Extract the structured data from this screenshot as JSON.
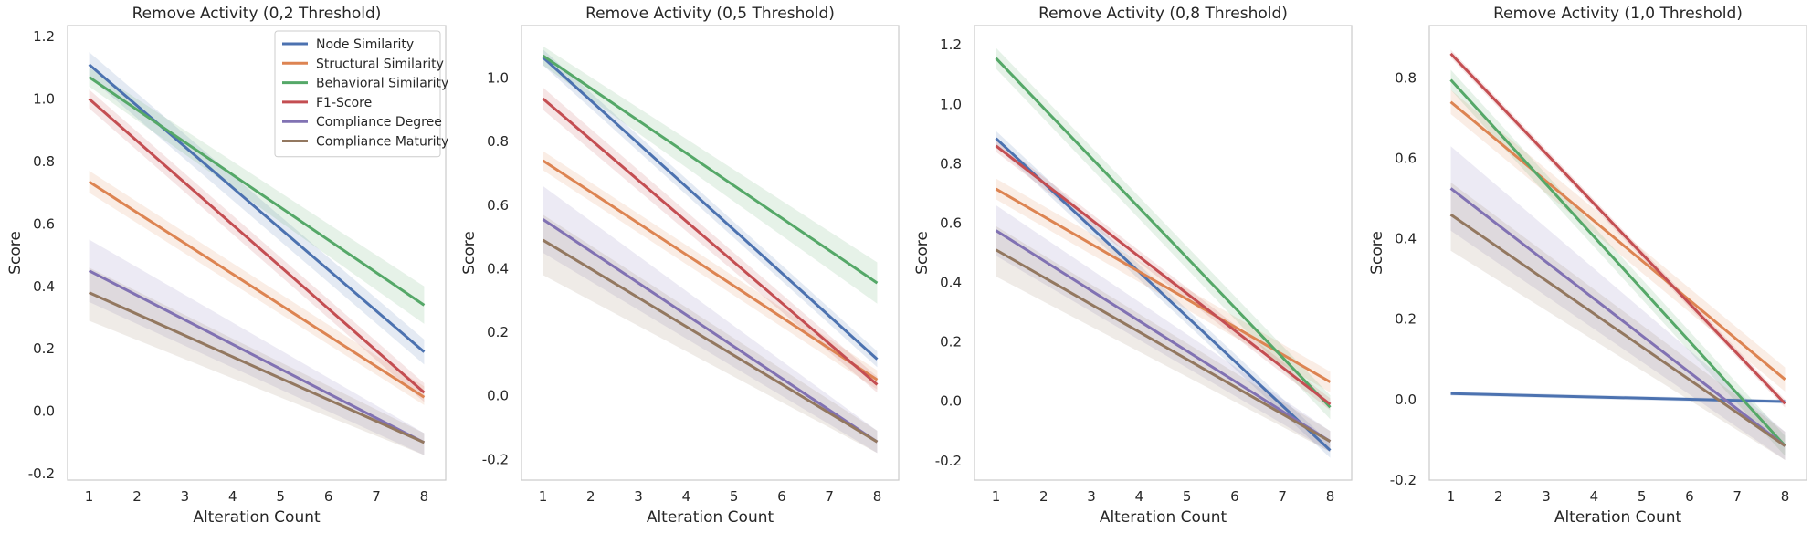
{
  "chart_data": [
    {
      "type": "line",
      "title": "Remove Activity (0,2 Threshold)",
      "xlabel": "Alteration Count",
      "ylabel": "Score",
      "xlim": [
        0.55,
        8.45
      ],
      "ylim": [
        -0.22,
        1.235
      ],
      "xticks": [
        1,
        2,
        3,
        4,
        5,
        6,
        7,
        8
      ],
      "yticks": [
        -0.2,
        0.0,
        0.2,
        0.4,
        0.6,
        0.8,
        1.0,
        1.2
      ],
      "ytick_labels": [
        "-0.2",
        "0.0",
        "0.2",
        "0.4",
        "0.6",
        "0.8",
        "1.0",
        "1.2"
      ],
      "grid": false,
      "legend": "top-right",
      "series": [
        {
          "name": "Node Similarity",
          "color": "#4C72B0",
          "x": [
            1,
            8
          ],
          "y": [
            1.11,
            0.19
          ],
          "ci": [
            [
              1.15,
              1.07
            ],
            [
              0.23,
              0.15
            ]
          ]
        },
        {
          "name": "Structural Similarity",
          "color": "#DD8452",
          "x": [
            1,
            8
          ],
          "y": [
            0.735,
            0.045
          ],
          "ci": [
            [
              0.77,
              0.7
            ],
            [
              0.08,
              0.02
            ]
          ]
        },
        {
          "name": "Behavioral Similarity",
          "color": "#55A868",
          "x": [
            1,
            8
          ],
          "y": [
            1.07,
            0.34
          ],
          "ci": [
            [
              1.1,
              1.04
            ],
            [
              0.4,
              0.28
            ]
          ]
        },
        {
          "name": "F1-Score",
          "color": "#C44E52",
          "x": [
            1,
            8
          ],
          "y": [
            1.0,
            0.06
          ],
          "ci": [
            [
              1.03,
              0.97
            ],
            [
              0.09,
              0.03
            ]
          ]
        },
        {
          "name": "Compliance Degree",
          "color": "#8172B3",
          "x": [
            1,
            8
          ],
          "y": [
            0.45,
            -0.1
          ],
          "ci": [
            [
              0.55,
              0.35
            ],
            [
              -0.07,
              -0.14
            ]
          ]
        },
        {
          "name": "Compliance Maturity",
          "color": "#937860",
          "x": [
            1,
            8
          ],
          "y": [
            0.38,
            -0.1
          ],
          "ci": [
            [
              0.46,
              0.29
            ],
            [
              -0.07,
              -0.14
            ]
          ]
        }
      ]
    },
    {
      "type": "line",
      "title": "Remove Activity (0,5 Threshold)",
      "xlabel": "Alteration Count",
      "ylabel": "Score",
      "xlim": [
        0.55,
        8.45
      ],
      "ylim": [
        -0.265,
        1.165
      ],
      "xticks": [
        1,
        2,
        3,
        4,
        5,
        6,
        7,
        8
      ],
      "yticks": [
        -0.2,
        0.0,
        0.2,
        0.4,
        0.6,
        0.8,
        1.0
      ],
      "ytick_labels": [
        "-0.2",
        "0.0",
        "0.2",
        "0.4",
        "0.6",
        "0.8",
        "1.0"
      ],
      "grid": false,
      "legend": "none",
      "series": [
        {
          "name": "Node Similarity",
          "color": "#4C72B0",
          "x": [
            1,
            8
          ],
          "y": [
            1.065,
            0.115
          ],
          "ci": [
            [
              1.09,
              1.04
            ],
            [
              0.14,
              0.09
            ]
          ]
        },
        {
          "name": "Structural Similarity",
          "color": "#DD8452",
          "x": [
            1,
            8
          ],
          "y": [
            0.74,
            0.05
          ],
          "ci": [
            [
              0.77,
              0.71
            ],
            [
              0.08,
              0.02
            ]
          ]
        },
        {
          "name": "Behavioral Similarity",
          "color": "#55A868",
          "x": [
            1,
            8
          ],
          "y": [
            1.07,
            0.355
          ],
          "ci": [
            [
              1.1,
              1.04
            ],
            [
              0.42,
              0.29
            ]
          ]
        },
        {
          "name": "F1-Score",
          "color": "#C44E52",
          "x": [
            1,
            8
          ],
          "y": [
            0.935,
            0.035
          ],
          "ci": [
            [
              0.97,
              0.9
            ],
            [
              0.06,
              0.01
            ]
          ]
        },
        {
          "name": "Compliance Degree",
          "color": "#8172B3",
          "x": [
            1,
            8
          ],
          "y": [
            0.555,
            -0.145
          ],
          "ci": [
            [
              0.66,
              0.45
            ],
            [
              -0.11,
              -0.18
            ]
          ]
        },
        {
          "name": "Compliance Maturity",
          "color": "#937860",
          "x": [
            1,
            8
          ],
          "y": [
            0.49,
            -0.145
          ],
          "ci": [
            [
              0.57,
              0.38
            ],
            [
              -0.11,
              -0.18
            ]
          ]
        }
      ]
    },
    {
      "type": "line",
      "title": "Remove Activity (0,8 Threshold)",
      "xlabel": "Alteration Count",
      "ylabel": "Score",
      "xlim": [
        0.55,
        8.45
      ],
      "ylim": [
        -0.265,
        1.265
      ],
      "xticks": [
        1,
        2,
        3,
        4,
        5,
        6,
        7,
        8
      ],
      "yticks": [
        -0.2,
        0.0,
        0.2,
        0.4,
        0.6,
        0.8,
        1.0,
        1.2
      ],
      "ytick_labels": [
        "-0.2",
        "0.0",
        "0.2",
        "0.4",
        "0.6",
        "0.8",
        "1.0",
        "1.2"
      ],
      "grid": false,
      "legend": "none",
      "series": [
        {
          "name": "Node Similarity",
          "color": "#4C72B0",
          "x": [
            1,
            8
          ],
          "y": [
            0.885,
            -0.165
          ],
          "ci": [
            [
              0.91,
              0.86
            ],
            [
              -0.14,
              -0.19
            ]
          ]
        },
        {
          "name": "Structural Similarity",
          "color": "#DD8452",
          "x": [
            1,
            8
          ],
          "y": [
            0.715,
            0.065
          ],
          "ci": [
            [
              0.75,
              0.68
            ],
            [
              0.1,
              0.03
            ]
          ]
        },
        {
          "name": "Behavioral Similarity",
          "color": "#55A868",
          "x": [
            1,
            8
          ],
          "y": [
            1.155,
            -0.02
          ],
          "ci": [
            [
              1.19,
              1.12
            ],
            [
              0.02,
              -0.06
            ]
          ]
        },
        {
          "name": "F1-Score",
          "color": "#C44E52",
          "x": [
            1,
            8
          ],
          "y": [
            0.86,
            -0.01
          ],
          "ci": [
            [
              0.88,
              0.84
            ],
            [
              0.01,
              -0.03
            ]
          ]
        },
        {
          "name": "Compliance Degree",
          "color": "#8172B3",
          "x": [
            1,
            8
          ],
          "y": [
            0.575,
            -0.135
          ],
          "ci": [
            [
              0.66,
              0.49
            ],
            [
              -0.1,
              -0.17
            ]
          ]
        },
        {
          "name": "Compliance Maturity",
          "color": "#937860",
          "x": [
            1,
            8
          ],
          "y": [
            0.51,
            -0.135
          ],
          "ci": [
            [
              0.59,
              0.42
            ],
            [
              -0.1,
              -0.17
            ]
          ]
        }
      ]
    },
    {
      "type": "line",
      "title": "Remove Activity (1,0 Threshold)",
      "xlabel": "Alteration Count",
      "ylabel": "Score",
      "xlim": [
        0.55,
        8.45
      ],
      "ylim": [
        -0.2,
        0.93
      ],
      "xticks": [
        1,
        2,
        3,
        4,
        5,
        6,
        7,
        8
      ],
      "yticks": [
        -0.2,
        0.0,
        0.2,
        0.4,
        0.6,
        0.8
      ],
      "ytick_labels": [
        "-0.2",
        "0.0",
        "0.2",
        "0.4",
        "0.6",
        "0.8"
      ],
      "grid": false,
      "legend": "none",
      "series": [
        {
          "name": "Node Similarity",
          "color": "#4C72B0",
          "x": [
            1,
            8
          ],
          "y": [
            0.015,
            -0.005
          ],
          "ci": [
            [
              0.02,
              0.01
            ],
            [
              0.0,
              -0.01
            ]
          ]
        },
        {
          "name": "Structural Similarity",
          "color": "#DD8452",
          "x": [
            1,
            8
          ],
          "y": [
            0.74,
            0.05
          ],
          "ci": [
            [
              0.77,
              0.71
            ],
            [
              0.08,
              0.02
            ]
          ]
        },
        {
          "name": "Behavioral Similarity",
          "color": "#55A868",
          "x": [
            1,
            8
          ],
          "y": [
            0.795,
            -0.115
          ],
          "ci": [
            [
              0.82,
              0.77
            ],
            [
              -0.09,
              -0.14
            ]
          ]
        },
        {
          "name": "F1-Score",
          "color": "#C44E52",
          "x": [
            1,
            8
          ],
          "y": [
            0.86,
            -0.01
          ],
          "ci": [
            [
              0.87,
              0.85
            ],
            [
              0.0,
              -0.02
            ]
          ]
        },
        {
          "name": "Compliance Degree",
          "color": "#8172B3",
          "x": [
            1,
            8
          ],
          "y": [
            0.525,
            -0.115
          ],
          "ci": [
            [
              0.63,
              0.42
            ],
            [
              -0.08,
              -0.15
            ]
          ]
        },
        {
          "name": "Compliance Maturity",
          "color": "#937860",
          "x": [
            1,
            8
          ],
          "y": [
            0.46,
            -0.115
          ],
          "ci": [
            [
              0.54,
              0.37
            ],
            [
              -0.08,
              -0.15
            ]
          ]
        }
      ]
    }
  ]
}
